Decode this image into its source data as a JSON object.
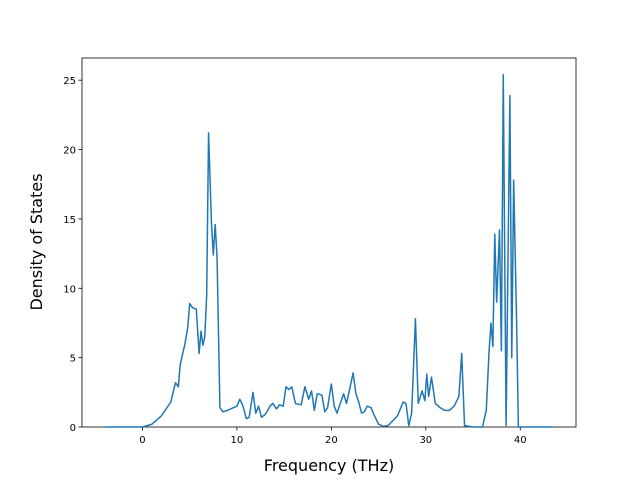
{
  "chart_data": {
    "type": "line",
    "xlabel": "Frequency (THz)",
    "ylabel": "Density of States",
    "x": [
      -4,
      0,
      1,
      2,
      3,
      3.5,
      3.8,
      4,
      4.5,
      4.8,
      5,
      5.3,
      5.7,
      6,
      6.2,
      6.4,
      6.6,
      6.8,
      7,
      7.3,
      7.5,
      7.7,
      7.9,
      8.2,
      8.5,
      9,
      10,
      10.3,
      10.6,
      11,
      11.3,
      11.7,
      12,
      12.3,
      12.6,
      13,
      13.5,
      13.8,
      14.2,
      14.5,
      14.9,
      15.2,
      15.5,
      15.8,
      16.2,
      16.8,
      17.2,
      17.6,
      17.9,
      18.2,
      18.5,
      19,
      19.3,
      19.6,
      20,
      20.3,
      20.6,
      21,
      21.3,
      21.6,
      21.9,
      22.3,
      22.6,
      22.9,
      23.2,
      23.5,
      23.8,
      24.2,
      24.5,
      25,
      25.5,
      26,
      27,
      27.6,
      27.9,
      28.2,
      28.5,
      28.9,
      29.2,
      29.6,
      29.9,
      30.1,
      30.3,
      30.6,
      31,
      31.5,
      32,
      32.5,
      33,
      33.5,
      33.8,
      34.1,
      35,
      36,
      36.4,
      36.7,
      36.9,
      37.1,
      37.3,
      37.5,
      37.8,
      38,
      38.2,
      38.5,
      38.9,
      39.1,
      39.3,
      39.6,
      39.8,
      43.5
    ],
    "series": [
      {
        "color": "#1f77b4",
        "values": [
          0,
          0,
          0.2,
          0.8,
          1.8,
          3.2,
          2.9,
          4.5,
          6,
          7.2,
          8.9,
          8.6,
          8.5,
          5.3,
          6.9,
          5.9,
          6.5,
          9.5,
          21.2,
          14.8,
          12.4,
          14.6,
          12.2,
          1.4,
          1.1,
          1.2,
          1.5,
          2.0,
          1.6,
          0.6,
          0.7,
          2.5,
          1.0,
          1.5,
          0.7,
          0.9,
          1.5,
          1.7,
          1.3,
          1.6,
          1.5,
          2.9,
          2.7,
          2.9,
          1.7,
          1.6,
          2.9,
          2.0,
          2.6,
          1.2,
          2.4,
          2.3,
          1.1,
          1.4,
          3.1,
          1.5,
          1.0,
          1.8,
          2.4,
          1.7,
          2.6,
          3.9,
          2.4,
          1.8,
          1.0,
          1.1,
          1.5,
          1.4,
          0.9,
          0.2,
          0.05,
          0.1,
          0.8,
          1.8,
          1.7,
          0.1,
          1.0,
          7.8,
          1.7,
          2.6,
          1.9,
          3.8,
          2.2,
          3.6,
          1.7,
          1.4,
          1.2,
          1.2,
          1.5,
          2.2,
          5.3,
          0.1,
          0,
          0,
          1.2,
          5.5,
          7.5,
          5.8,
          13.9,
          9.0,
          14.2,
          5.5,
          25.4,
          0.1,
          23.9,
          5.0,
          17.8,
          8,
          0,
          0
        ]
      }
    ],
    "xlim": [
      -6.4,
      45.9
    ],
    "ylim": [
      0,
      26.6
    ],
    "xticks": [
      0,
      10,
      20,
      30,
      40
    ],
    "yticks": [
      0,
      5,
      10,
      15,
      20,
      25
    ]
  }
}
